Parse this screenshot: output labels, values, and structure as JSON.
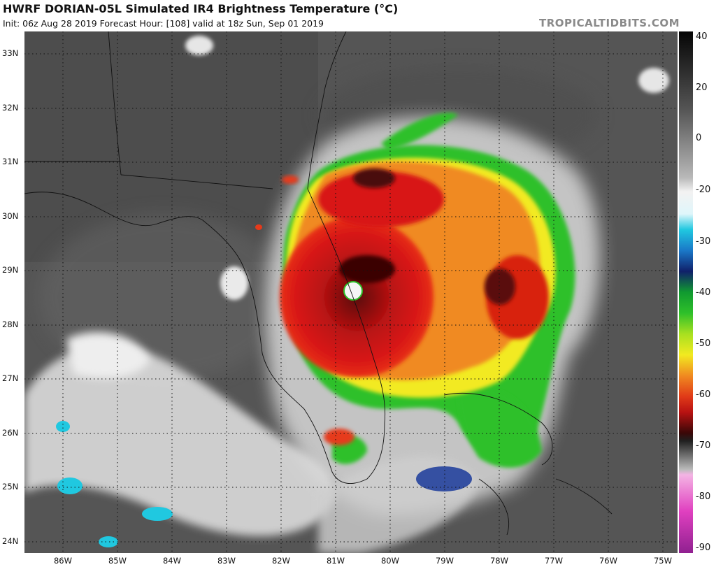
{
  "header": {
    "title": "HWRF DORIAN-05L Simulated IR4 Brightness Temperature (°C)",
    "subtitle": "Init: 06z Aug 28 2019   Forecast Hour: [108]   valid at 18z Sun, Sep 01 2019",
    "brand": "TROPICALTIDBITS.COM"
  },
  "map": {
    "latitudes": [
      "33N",
      "32N",
      "31N",
      "30N",
      "29N",
      "28N",
      "27N",
      "26N",
      "25N",
      "24N"
    ],
    "longitudes": [
      "86W",
      "85W",
      "84W",
      "83W",
      "82W",
      "81W",
      "80W",
      "79W",
      "78W",
      "77W",
      "76W",
      "75W"
    ],
    "storm_center": {
      "lat": 28.5,
      "lon": -80.7
    }
  },
  "colorbar": {
    "unit": "°C",
    "range": [
      -90,
      40
    ],
    "ticks": [
      "40",
      "20",
      "0",
      "-20",
      "-30",
      "-40",
      "-50",
      "-60",
      "-70",
      "-80",
      "-90"
    ],
    "colors": {
      "warm_gray": "#3a3a3a",
      "white": "#f2f2f2",
      "cyan": "#20c8e0",
      "navy": "#10206a",
      "green": "#2ec02a",
      "yellow": "#f2ea20",
      "orange": "#f08a20",
      "red": "#d81818",
      "dark_red": "#3a0808",
      "magenta": "#e040c0"
    }
  }
}
